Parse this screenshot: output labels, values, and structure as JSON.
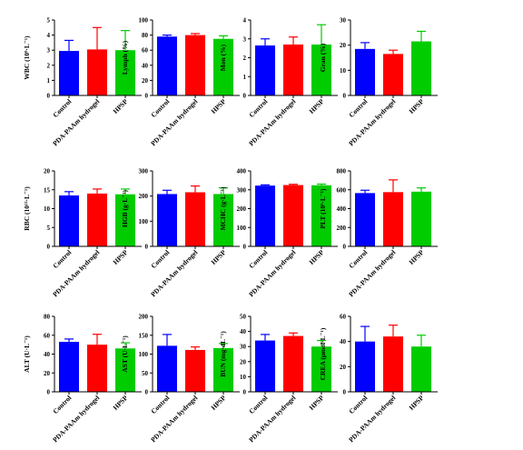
{
  "chart_data": [
    {
      "type": "bar",
      "ylabel": "WBC (10⁹·L⁻¹)",
      "ylim": [
        0,
        5
      ],
      "yticks": [
        "0",
        "1",
        "2",
        "3",
        "4",
        "5"
      ],
      "categories": [
        "Control",
        "PDA-PAAm hydrogel",
        "HPSP"
      ],
      "values": [
        2.95,
        3.05,
        3.0
      ],
      "errors": [
        0.7,
        1.45,
        1.3
      ]
    },
    {
      "type": "bar",
      "ylabel": "Lymph (%)",
      "ylim": [
        0,
        100
      ],
      "yticks": [
        "0",
        "20",
        "40",
        "60",
        "80",
        "100"
      ],
      "categories": [
        "Control",
        "PDA-PAAm hydrogel",
        "HPSP"
      ],
      "values": [
        78,
        80,
        75
      ],
      "errors": [
        2,
        2,
        4
      ]
    },
    {
      "type": "bar",
      "ylabel": "Mon (%)",
      "ylim": [
        0,
        4
      ],
      "yticks": [
        "0",
        "1",
        "2",
        "3",
        "4"
      ],
      "categories": [
        "Control",
        "PDA-PAAm hydrogel",
        "HPSP"
      ],
      "values": [
        2.65,
        2.7,
        2.7
      ],
      "errors": [
        0.35,
        0.4,
        1.05
      ]
    },
    {
      "type": "bar",
      "ylabel": "Gran (%)",
      "ylim": [
        0,
        30
      ],
      "yticks": [
        "0",
        "10",
        "20",
        "30"
      ],
      "categories": [
        "Control",
        "PDA-PAAm hydrogel",
        "HPSP"
      ],
      "values": [
        18.5,
        16.5,
        21.5
      ],
      "errors": [
        2.5,
        1.5,
        4
      ]
    },
    {
      "type": "bar",
      "ylabel": "RBC (10¹²·L⁻¹)",
      "ylim": [
        0,
        20
      ],
      "yticks": [
        "0",
        "5",
        "10",
        "15",
        "20"
      ],
      "categories": [
        "Control",
        "PDA-PAAm hydrogel",
        "HPSP"
      ],
      "values": [
        13.5,
        14,
        13.8
      ],
      "errors": [
        1,
        1.2,
        1.4
      ]
    },
    {
      "type": "bar",
      "ylabel": "HGB (g·L⁻¹)",
      "ylim": [
        0,
        300
      ],
      "yticks": [
        "0",
        "100",
        "200",
        "300"
      ],
      "categories": [
        "Control",
        "PDA-PAAm hydrogel",
        "HPSP"
      ],
      "values": [
        208,
        215,
        208
      ],
      "errors": [
        15,
        25,
        25
      ]
    },
    {
      "type": "bar",
      "ylabel": "MCHC (g·L⁻¹)",
      "ylim": [
        0,
        400
      ],
      "yticks": [
        "0",
        "100",
        "200",
        "300",
        "400"
      ],
      "categories": [
        "Control",
        "PDA-PAAm hydrogel",
        "HPSP"
      ],
      "values": [
        322,
        325,
        324
      ],
      "errors": [
        4,
        4,
        6
      ]
    },
    {
      "type": "bar",
      "ylabel": "PLT (10⁹·L⁻¹)",
      "ylim": [
        0,
        800
      ],
      "yticks": [
        "0",
        "200",
        "400",
        "600",
        "800"
      ],
      "categories": [
        "Control",
        "PDA-PAAm hydrogel",
        "HPSP"
      ],
      "values": [
        565,
        575,
        580
      ],
      "errors": [
        30,
        130,
        40
      ]
    },
    {
      "type": "bar",
      "ylabel": "ALT (U·L⁻¹)",
      "ylim": [
        0,
        80
      ],
      "yticks": [
        "0",
        "20",
        "40",
        "60",
        "80"
      ],
      "categories": [
        "Control",
        "PDA-PAAm hydrogel",
        "HPSP"
      ],
      "values": [
        53,
        50,
        46
      ],
      "errors": [
        3,
        11,
        6
      ]
    },
    {
      "type": "bar",
      "ylabel": "AST (U·L⁻¹)",
      "ylim": [
        0,
        200
      ],
      "yticks": [
        "0",
        "50",
        "100",
        "150",
        "200"
      ],
      "categories": [
        "Control",
        "PDA-PAAm hydrogel",
        "HPSP"
      ],
      "values": [
        122,
        111,
        116
      ],
      "errors": [
        30,
        8,
        12
      ]
    },
    {
      "type": "bar",
      "ylabel": "BUN (mg·dL⁻¹)",
      "ylim": [
        0,
        50
      ],
      "yticks": [
        "0",
        "10",
        "20",
        "30",
        "40",
        "50"
      ],
      "categories": [
        "Control",
        "PDA-PAAm hydrogel",
        "HPSP"
      ],
      "values": [
        34,
        37,
        30
      ],
      "errors": [
        4,
        2,
        4
      ]
    },
    {
      "type": "bar",
      "ylabel": "CREA (μmol·L⁻¹)",
      "ylim": [
        0,
        60
      ],
      "yticks": [
        "0",
        "20",
        "40",
        "60"
      ],
      "categories": [
        "Control",
        "PDA-PAAm hydrogel",
        "HPSP"
      ],
      "values": [
        40,
        44,
        36
      ],
      "errors": [
        12,
        9,
        9
      ]
    }
  ],
  "colors": {
    "Control": "#0000ff",
    "PDA-PAAm hydrogel": "#ff0000",
    "HPSP": "#00cc00",
    "axis": "#000000"
  }
}
